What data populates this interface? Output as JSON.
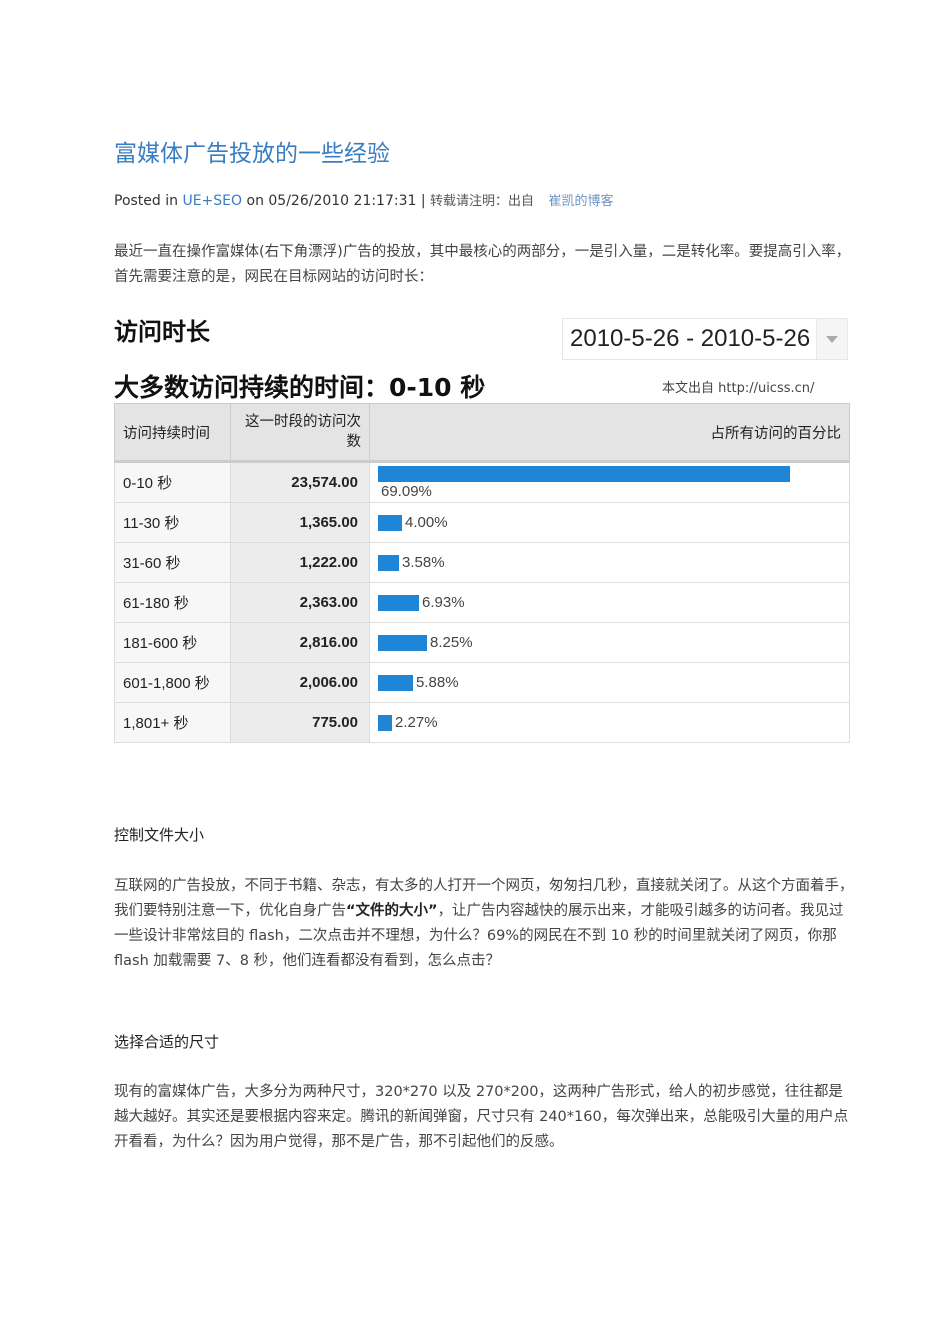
{
  "article": {
    "title": "富媒体广告投放的一些经验",
    "meta": {
      "posted_in": "Posted in",
      "category": "UE+SEO",
      "on": "on 05/26/2010 21:17:31 |",
      "note": "转载请注明：出自",
      "blog": "崔凯的博客"
    },
    "intro": "最近一直在操作富媒体(右下角漂浮)广告的投放，其中最核心的两部分，一是引入量，二是转化率。要提高引入率，首先需要注意的是，网民在目标网站的访问时长：",
    "section1_heading": "控制文件大小",
    "section1_p_a": "互联网的广告投放，不同于书籍、杂志，有太多的人打开一个网页，匆匆扫几秒，直接就关闭了。从这个方面着手，我们要特别注意一下，优化自身广告",
    "section1_p_bold": "“文件的大小”",
    "section1_p_b": "，让广告内容越快的展示出来，才能吸引越多的访问者。我见过一些设计非常炫目的 flash，二次点击并不理想，为什么？69%的网民在不到 10 秒的时间里就关闭了网页，你那 flash 加载需要 7、8 秒，他们连看都没有看到，怎么点击？",
    "section2_heading": "选择合适的尺寸",
    "section2_p": "现有的富媒体广告，大多分为两种尺寸，320*270 以及 270*200，这两种广告形式，给人的初步感觉，往往都是越大越好。其实还是要根据内容来定。腾讯的新闻弹窗，尺寸只有 240*160，每次弹出来，总能吸引大量的用户点开看看，为什么？因为用户觉得，那不是广告，那不引起他们的反感。"
  },
  "figure": {
    "title": "访问时长",
    "date_range": "2010-5-26 - 2010-5-26",
    "subtitle": "大多数访问持续的时间：0-10 秒",
    "source": "本文出自 http://uicss.cn/",
    "bar_color": "#1f85d6"
  },
  "chart_data": {
    "type": "table",
    "columns": [
      "访问持续时间",
      "这一时段的访问次数",
      "占所有访问的百分比"
    ],
    "rows": [
      {
        "duration": "0-10 秒",
        "visits": "23,574.00",
        "percent": 69.09,
        "percent_label": "69.09%"
      },
      {
        "duration": "11-30 秒",
        "visits": "1,365.00",
        "percent": 4.0,
        "percent_label": "4.00%"
      },
      {
        "duration": "31-60 秒",
        "visits": "1,222.00",
        "percent": 3.58,
        "percent_label": "3.58%"
      },
      {
        "duration": "61-180 秒",
        "visits": "2,363.00",
        "percent": 6.93,
        "percent_label": "6.93%"
      },
      {
        "duration": "181-600 秒",
        "visits": "2,816.00",
        "percent": 8.25,
        "percent_label": "8.25%"
      },
      {
        "duration": "601-1,800 秒",
        "visits": "2,006.00",
        "percent": 5.88,
        "percent_label": "5.88%"
      },
      {
        "duration": "1,801+ 秒",
        "visits": "775.00",
        "percent": 2.27,
        "percent_label": "2.27%"
      }
    ]
  }
}
